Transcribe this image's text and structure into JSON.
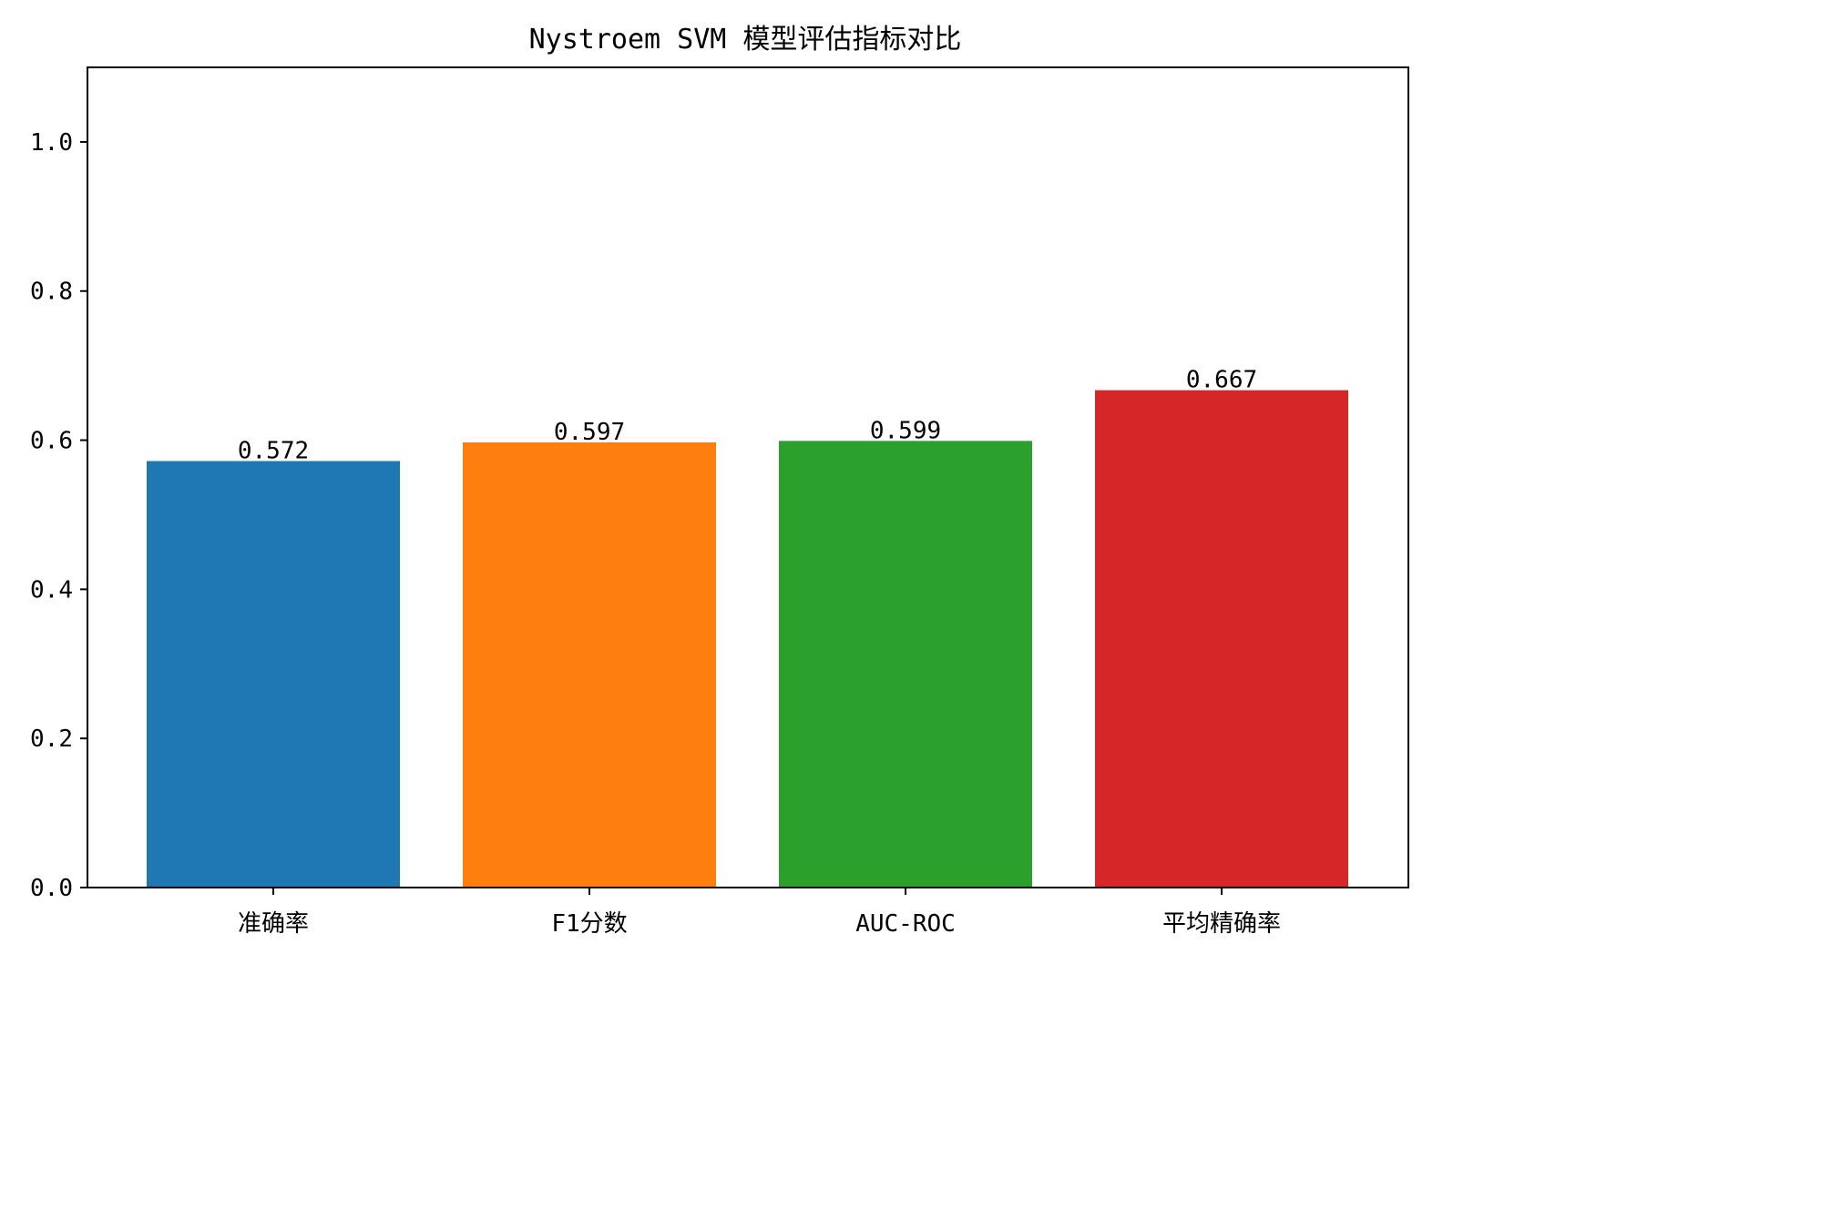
{
  "chart_data": {
    "type": "bar",
    "title": "Nystroem SVM 模型评估指标对比",
    "xlabel": "",
    "ylabel": "",
    "categories": [
      "准确率",
      "F1分数",
      "AUC-ROC",
      "平均精确率"
    ],
    "values": [
      0.572,
      0.597,
      0.599,
      0.667
    ],
    "value_labels": [
      "0.572",
      "0.597",
      "0.599",
      "0.667"
    ],
    "colors": [
      "#1f77b4",
      "#ff7f0e",
      "#2ca02c",
      "#d62728"
    ],
    "ylim": [
      0,
      1.1
    ],
    "yticks": [
      0.0,
      0.2,
      0.4,
      0.6,
      0.8,
      1.0
    ],
    "ytick_labels": [
      "0.0",
      "0.2",
      "0.4",
      "0.6",
      "0.8",
      "1.0"
    ],
    "grid": false,
    "legend": "none"
  }
}
